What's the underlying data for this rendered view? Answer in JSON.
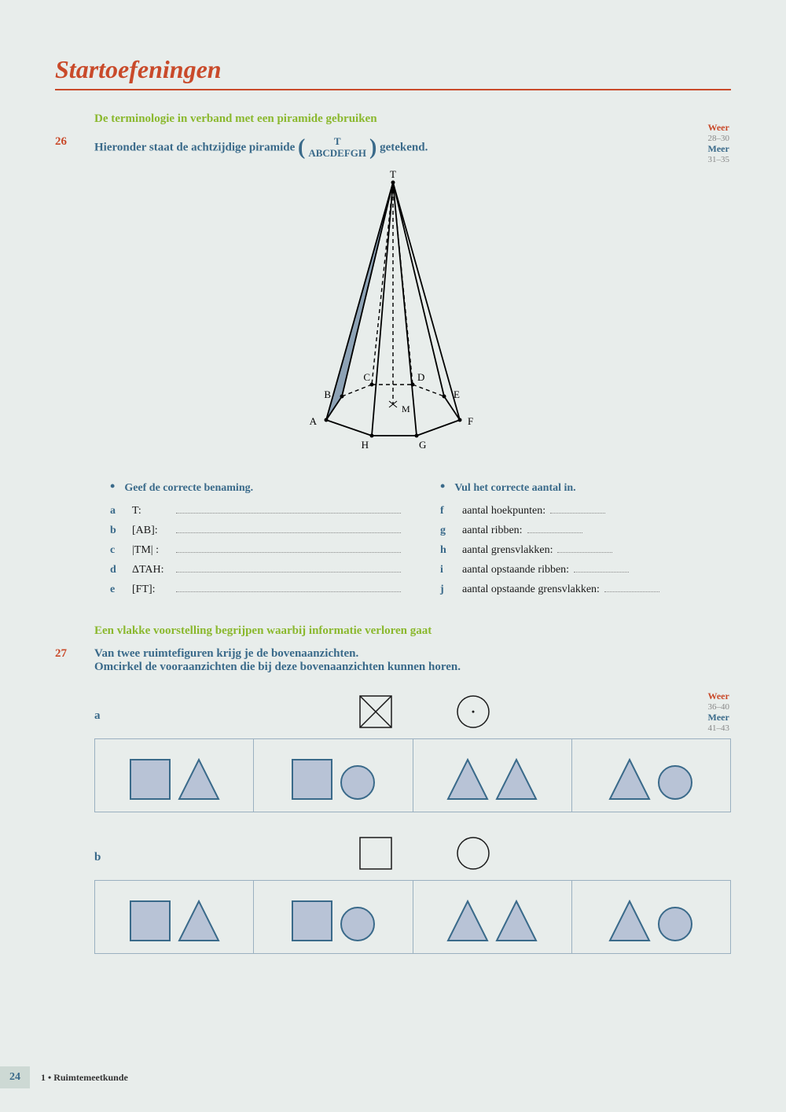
{
  "title": "Startoefeningen",
  "section1_title": "De terminologie in verband met een piramide gebruiken",
  "ex26": {
    "num": "26",
    "text_before": "Hieronder staat de achtzijdige piramide",
    "frac_top": "T",
    "frac_bottom": "ABCDEFGH",
    "text_after": "getekend."
  },
  "ref1": {
    "weer": "Weer",
    "weer_nums": "28–30",
    "meer": "Meer",
    "meer_nums": "31–35"
  },
  "pyramid_labels": {
    "T": "T",
    "A": "A",
    "B": "B",
    "C": "C",
    "D": "D",
    "E": "E",
    "F": "F",
    "G": "G",
    "H": "H",
    "M": "M"
  },
  "left_header": "Geef de correcte benaming.",
  "right_header": "Vul het correcte aantal in.",
  "left_q": [
    {
      "l": "a",
      "t": "T:"
    },
    {
      "l": "b",
      "t": "[AB]:"
    },
    {
      "l": "c",
      "t": "|TM| :"
    },
    {
      "l": "d",
      "t": "ΔTAH:"
    },
    {
      "l": "e",
      "t": "[FT]:"
    }
  ],
  "right_q": [
    {
      "l": "f",
      "t": "aantal hoekpunten:"
    },
    {
      "l": "g",
      "t": "aantal ribben:"
    },
    {
      "l": "h",
      "t": "aantal grensvlakken:"
    },
    {
      "l": "i",
      "t": "aantal opstaande ribben:"
    },
    {
      "l": "j",
      "t": "aantal opstaande grensvlakken:"
    }
  ],
  "section2_title": "Een vlakke voorstelling begrijpen waarbij informatie verloren gaat",
  "ex27": {
    "num": "27",
    "line1": "Van twee ruimtefiguren krijg je de bovenaanzichten.",
    "line2": "Omcirkel de vooraanzichten die bij deze bovenaanzichten kunnen horen."
  },
  "ref2": {
    "weer": "Weer",
    "weer_nums": "36–40",
    "meer": "Meer",
    "meer_nums": "41–43"
  },
  "sub_a": "a",
  "sub_b": "b",
  "shapes": {
    "fill": "#b8c3d6",
    "stroke": "#3a6a8a",
    "stroke_dark": "#1a1a1a"
  },
  "footer": {
    "page": "24",
    "chapter": "1 • Ruimtemeetkunde"
  }
}
